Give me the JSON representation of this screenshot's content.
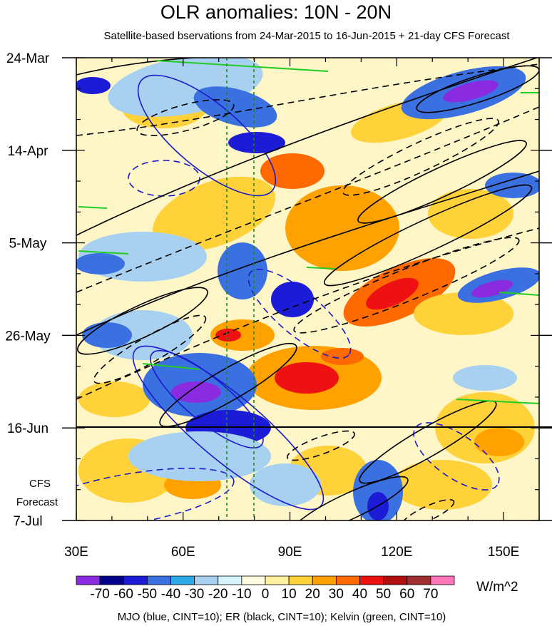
{
  "title": "OLR anomalies: 10N - 20N",
  "subtitle": "Satellite-based bservations from 24-Mar-2015 to 16-Jun-2015 + 21-day CFS Forecast",
  "forecast_label": [
    "CFS",
    "Forecast"
  ],
  "units": "W/m^2",
  "footnote": "MJO (blue, CINT=10); ER (black, CINT=10); Kelvin (green, CINT=10)",
  "colors": {
    "mjo": "#1a1acc",
    "er": "#000000",
    "kelvin": "#22cc22",
    "reference_lines": "#1a8a1a"
  },
  "chart_data": {
    "type": "heatmap",
    "x_axis": {
      "label": "",
      "ticks": [
        "30E",
        "60E",
        "90E",
        "120E",
        "150E"
      ],
      "tick_values": [
        30,
        60,
        90,
        120,
        150
      ],
      "range": [
        30,
        160
      ]
    },
    "y_axis": {
      "label": "",
      "ticks": [
        "24-Mar",
        "14-Apr",
        "5-May",
        "26-May",
        "16-Jun",
        "7-Jul"
      ],
      "tick_days": [
        0,
        21,
        42,
        63,
        84,
        105
      ],
      "range_days": [
        0,
        105
      ],
      "reversed": true
    },
    "observation_end": "16-Jun",
    "reference_longitudes": [
      72,
      80
    ],
    "colorbar": {
      "labels": [
        "-70",
        "-60",
        "-50",
        "-40",
        "-30",
        "-20",
        "-10",
        "0",
        "10",
        "20",
        "30",
        "40",
        "50",
        "60",
        "70"
      ],
      "colors": [
        "#8a2be2",
        "#00008b",
        "#1c1cd6",
        "#3a70e0",
        "#2fa8e8",
        "#a8d0f0",
        "#d6f2fb",
        "#fffbe0",
        "#fff0a0",
        "#ffd23a",
        "#ffa200",
        "#ff6a00",
        "#ee1111",
        "#b01010",
        "#a03030",
        "#ff77bb"
      ]
    }
  }
}
